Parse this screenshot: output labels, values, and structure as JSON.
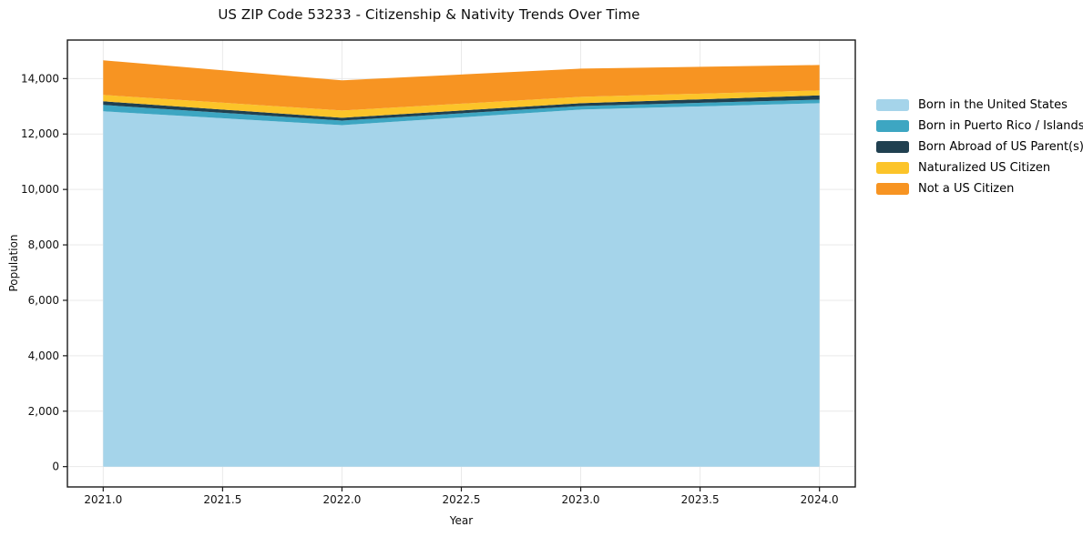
{
  "chart_data": {
    "type": "area",
    "stacked": true,
    "title": "US ZIP Code 53233 - Citizenship & Nativity Trends Over Time",
    "xlabel": "Year",
    "ylabel": "Population",
    "x": [
      2021,
      2022,
      2023,
      2024
    ],
    "series": [
      {
        "name": "Born in the United States",
        "color": "#a5d4ea",
        "values": [
          12820,
          12320,
          12880,
          13110
        ]
      },
      {
        "name": "Born in Puerto Rico / Islands",
        "color": "#3da6c2",
        "values": [
          230,
          165,
          130,
          130
        ]
      },
      {
        "name": "Born Abroad of US Parent(s)",
        "color": "#204050",
        "values": [
          130,
          100,
          100,
          155
        ]
      },
      {
        "name": "Naturalized US Citizen",
        "color": "#fcc429",
        "values": [
          230,
          265,
          230,
          175
        ]
      },
      {
        "name": "Not a US Citizen",
        "color": "#f79422",
        "values": [
          1250,
          1085,
          1020,
          920
        ]
      }
    ],
    "stack_totals": [
      14660,
      13935,
      14360,
      14490
    ],
    "x_ticks": {
      "values": [
        2021.0,
        2021.5,
        2022.0,
        2022.5,
        2023.0,
        2023.5,
        2024.0
      ],
      "labels": [
        "2021.0",
        "2021.5",
        "2022.0",
        "2022.5",
        "2023.0",
        "2023.5",
        "2024.0"
      ]
    },
    "y_ticks": {
      "values": [
        0,
        2000,
        4000,
        6000,
        8000,
        10000,
        12000,
        14000
      ],
      "labels": [
        "0",
        "2,000",
        "4,000",
        "6,000",
        "8,000",
        "10,000",
        "12,000",
        "14,000"
      ]
    },
    "xlim": [
      2020.85,
      2024.15
    ],
    "ylim": [
      -733,
      15390
    ],
    "grid": true,
    "grid_color": "#e9e9e9",
    "axis_color": "#1a1a1a",
    "legend_position": "right"
  }
}
